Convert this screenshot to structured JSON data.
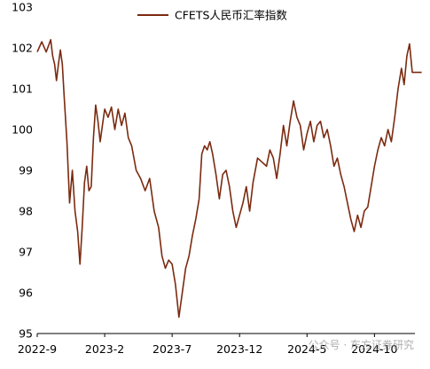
{
  "watermark": "公众号 · 东方证券研究",
  "chart_data": {
    "type": "line",
    "title": "",
    "xlabel": "",
    "ylabel": "",
    "ylim": [
      95,
      103
    ],
    "yticks": [
      95,
      96,
      97,
      98,
      99,
      100,
      101,
      102,
      103
    ],
    "xlim": [
      "2022-09",
      "2025-01"
    ],
    "xtick_labels": [
      {
        "date": "2022-09",
        "label": "2022-9"
      },
      {
        "date": "2023-02",
        "label": "2023-2"
      },
      {
        "date": "2023-07",
        "label": "2023-7"
      },
      {
        "date": "2023-12",
        "label": "2023-12"
      },
      {
        "date": "2024-05",
        "label": "2024-5"
      },
      {
        "date": "2024-10",
        "label": "2024-10"
      }
    ],
    "grid": false,
    "legend_position": "top",
    "series": [
      {
        "name": "CFETS人民币汇率指数",
        "color": "#7b2a10",
        "points": [
          [
            "2022-09",
            101.9
          ],
          [
            "2022-09",
            102.15
          ],
          [
            "2022-09",
            101.9
          ],
          [
            "2022-10",
            102.2
          ],
          [
            "2022-10",
            101.8
          ],
          [
            "2022-10",
            101.6
          ],
          [
            "2022-10",
            101.2
          ],
          [
            "2022-10",
            101.6
          ],
          [
            "2022-10",
            101.95
          ],
          [
            "2022-10",
            101.6
          ],
          [
            "2022-11",
            100.8
          ],
          [
            "2022-11",
            99.7
          ],
          [
            "2022-11",
            98.2
          ],
          [
            "2022-11",
            99.0
          ],
          [
            "2022-11",
            98.0
          ],
          [
            "2022-12",
            97.5
          ],
          [
            "2022-12",
            96.7
          ],
          [
            "2022-12",
            97.6
          ],
          [
            "2022-12",
            98.7
          ],
          [
            "2022-12",
            99.1
          ],
          [
            "2022-12",
            98.5
          ],
          [
            "2023-01",
            98.6
          ],
          [
            "2023-01",
            99.8
          ],
          [
            "2023-01",
            100.6
          ],
          [
            "2023-01",
            100.2
          ],
          [
            "2023-01",
            99.7
          ],
          [
            "2023-01",
            100.1
          ],
          [
            "2023-02",
            100.5
          ],
          [
            "2023-02",
            100.3
          ],
          [
            "2023-02",
            100.55
          ],
          [
            "2023-02",
            100.0
          ],
          [
            "2023-03",
            100.5
          ],
          [
            "2023-03",
            100.1
          ],
          [
            "2023-03",
            100.4
          ],
          [
            "2023-03",
            99.8
          ],
          [
            "2023-04",
            99.6
          ],
          [
            "2023-04",
            99.0
          ],
          [
            "2023-04",
            98.8
          ],
          [
            "2023-05",
            98.5
          ],
          [
            "2023-05",
            98.8
          ],
          [
            "2023-05",
            98.0
          ],
          [
            "2023-06",
            97.6
          ],
          [
            "2023-06",
            96.9
          ],
          [
            "2023-06",
            96.6
          ],
          [
            "2023-06",
            96.8
          ],
          [
            "2023-07",
            96.7
          ],
          [
            "2023-07",
            96.2
          ],
          [
            "2023-07",
            95.4
          ],
          [
            "2023-07",
            96.0
          ],
          [
            "2023-08",
            96.6
          ],
          [
            "2023-08",
            96.9
          ],
          [
            "2023-08",
            97.4
          ],
          [
            "2023-08",
            97.8
          ],
          [
            "2023-09",
            98.3
          ],
          [
            "2023-09",
            99.4
          ],
          [
            "2023-09",
            99.6
          ],
          [
            "2023-09",
            99.5
          ],
          [
            "2023-09",
            99.7
          ],
          [
            "2023-10",
            99.4
          ],
          [
            "2023-10",
            98.9
          ],
          [
            "2023-10",
            98.3
          ],
          [
            "2023-10",
            98.9
          ],
          [
            "2023-11",
            99.0
          ],
          [
            "2023-11",
            98.6
          ],
          [
            "2023-11",
            98.0
          ],
          [
            "2023-11",
            97.6
          ],
          [
            "2023-12",
            97.9
          ],
          [
            "2023-12",
            98.2
          ],
          [
            "2023-12",
            98.6
          ],
          [
            "2023-12",
            98.0
          ],
          [
            "2024-01",
            98.7
          ],
          [
            "2024-01",
            99.3
          ],
          [
            "2024-01",
            99.2
          ],
          [
            "2024-02",
            99.1
          ],
          [
            "2024-02",
            99.5
          ],
          [
            "2024-02",
            99.3
          ],
          [
            "2024-02",
            98.8
          ],
          [
            "2024-03",
            99.4
          ],
          [
            "2024-03",
            100.1
          ],
          [
            "2024-03",
            99.6
          ],
          [
            "2024-03",
            100.2
          ],
          [
            "2024-04",
            100.7
          ],
          [
            "2024-04",
            100.3
          ],
          [
            "2024-04",
            100.1
          ],
          [
            "2024-04",
            99.5
          ],
          [
            "2024-05",
            99.9
          ],
          [
            "2024-05",
            100.2
          ],
          [
            "2024-05",
            99.7
          ],
          [
            "2024-05",
            100.1
          ],
          [
            "2024-06",
            100.2
          ],
          [
            "2024-06",
            99.8
          ],
          [
            "2024-06",
            100.0
          ],
          [
            "2024-06",
            99.6
          ],
          [
            "2024-07",
            99.1
          ],
          [
            "2024-07",
            99.3
          ],
          [
            "2024-07",
            98.9
          ],
          [
            "2024-07",
            98.6
          ],
          [
            "2024-08",
            98.2
          ],
          [
            "2024-08",
            97.8
          ],
          [
            "2024-08",
            97.5
          ],
          [
            "2024-08",
            97.9
          ],
          [
            "2024-09",
            97.6
          ],
          [
            "2024-09",
            98.0
          ],
          [
            "2024-09",
            98.1
          ],
          [
            "2024-09",
            98.6
          ],
          [
            "2024-10",
            99.1
          ],
          [
            "2024-10",
            99.5
          ],
          [
            "2024-10",
            99.8
          ],
          [
            "2024-10",
            99.6
          ],
          [
            "2024-11",
            100.0
          ],
          [
            "2024-11",
            99.7
          ],
          [
            "2024-11",
            100.3
          ],
          [
            "2024-11",
            101.0
          ],
          [
            "2024-12",
            101.5
          ],
          [
            "2024-12",
            101.1
          ],
          [
            "2024-12",
            101.8
          ],
          [
            "2024-12",
            102.1
          ],
          [
            "2024-12",
            101.4
          ],
          [
            "2025-01",
            101.4
          ]
        ]
      }
    ]
  }
}
